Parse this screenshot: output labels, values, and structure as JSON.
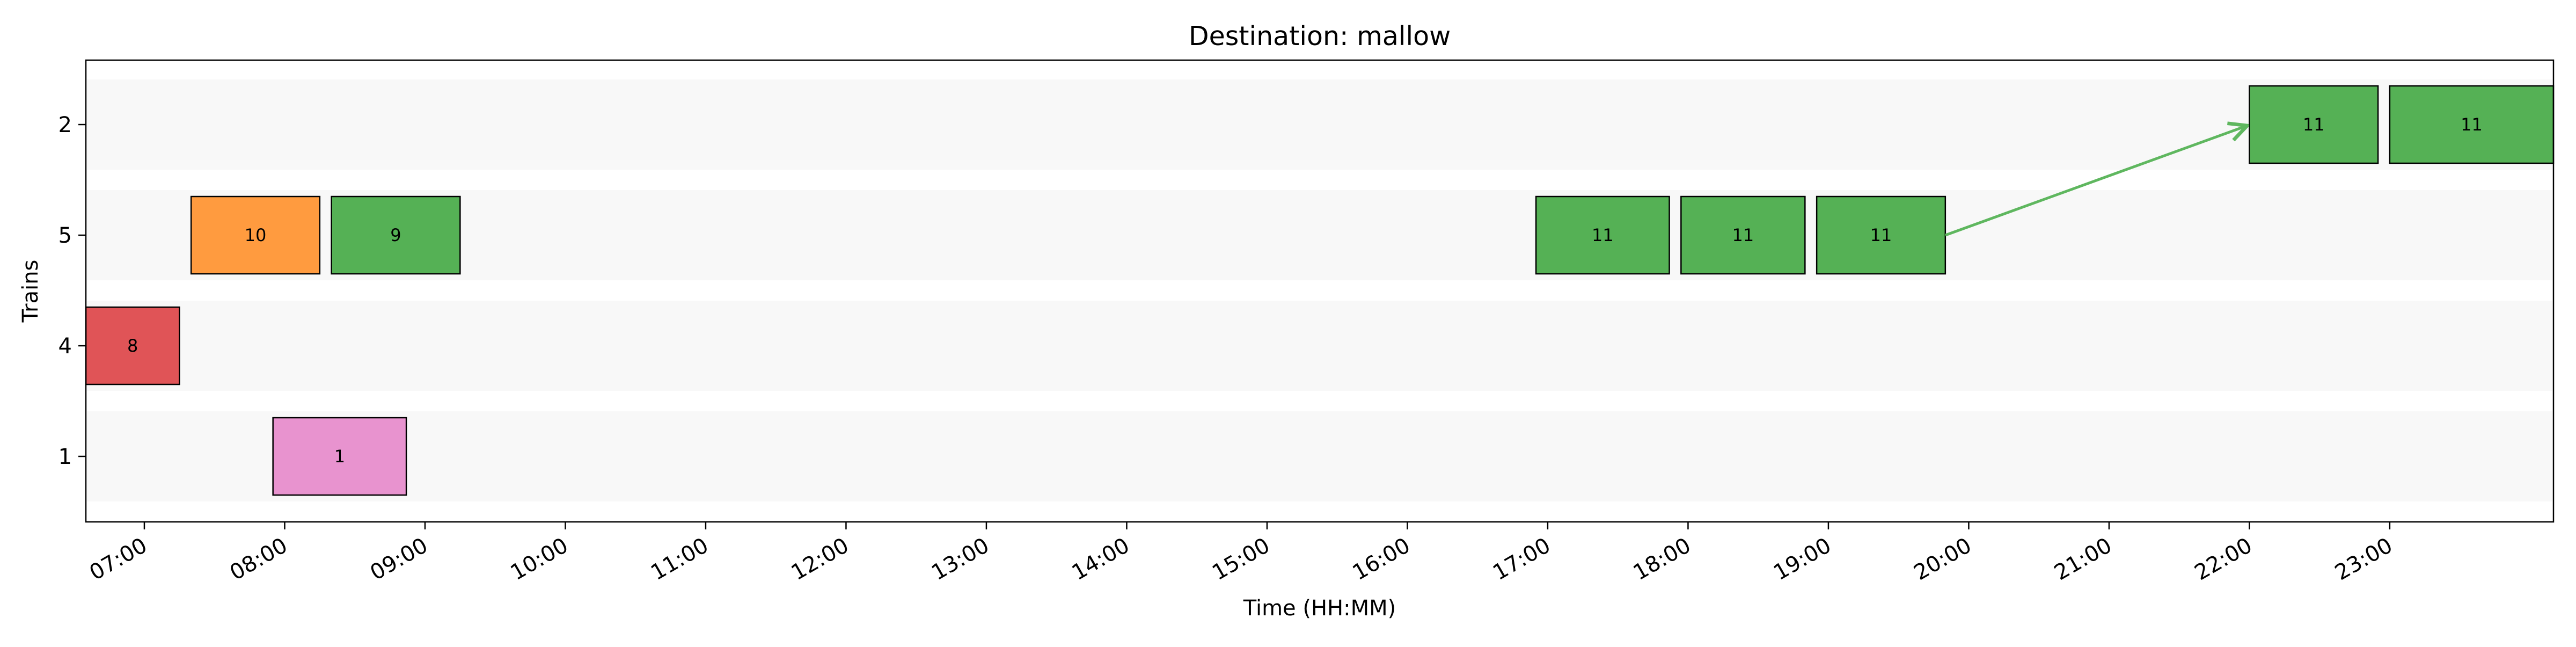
{
  "chart_data": {
    "type": "gantt",
    "title": "Destination: mallow",
    "xlabel": "Time (HH:MM)",
    "ylabel": "Trains",
    "x_ticks": [
      "07:00",
      "08:00",
      "09:00",
      "10:00",
      "11:00",
      "12:00",
      "13:00",
      "14:00",
      "15:00",
      "16:00",
      "17:00",
      "18:00",
      "19:00",
      "20:00",
      "21:00",
      "22:00",
      "23:00"
    ],
    "xlim": [
      "06:35",
      "24:10"
    ],
    "rows": [
      "2",
      "5",
      "4",
      "1"
    ],
    "colors": {
      "green": "#55b155",
      "orange": "#ff9b3f",
      "red": "#e05457",
      "pink": "#e893cf",
      "arrow": "#5fb75f",
      "row_band": "#f8f8f8"
    },
    "bars": [
      {
        "row": "2",
        "start": "22:00",
        "end": "22:55",
        "label": "11",
        "color": "#55b155"
      },
      {
        "row": "2",
        "start": "23:00",
        "end": "24:10",
        "label": "11",
        "color": "#55b155"
      },
      {
        "row": "5",
        "start": "07:20",
        "end": "08:15",
        "label": "10",
        "color": "#ff9b3f"
      },
      {
        "row": "5",
        "start": "08:20",
        "end": "09:15",
        "label": "9",
        "color": "#55b155"
      },
      {
        "row": "5",
        "start": "16:55",
        "end": "17:52",
        "label": "11",
        "color": "#55b155"
      },
      {
        "row": "5",
        "start": "17:57",
        "end": "18:50",
        "label": "11",
        "color": "#55b155"
      },
      {
        "row": "5",
        "start": "18:55",
        "end": "19:50",
        "label": "11",
        "color": "#55b155"
      },
      {
        "row": "4",
        "start": "06:25",
        "end": "07:15",
        "label": "8",
        "color": "#e05457"
      },
      {
        "row": "1",
        "start": "07:55",
        "end": "08:52",
        "label": "1",
        "color": "#e893cf"
      }
    ],
    "arrows": [
      {
        "from_row": "5",
        "from_time": "19:50",
        "to_row": "2",
        "to_time": "22:00",
        "color": "#5fb75f"
      }
    ]
  }
}
